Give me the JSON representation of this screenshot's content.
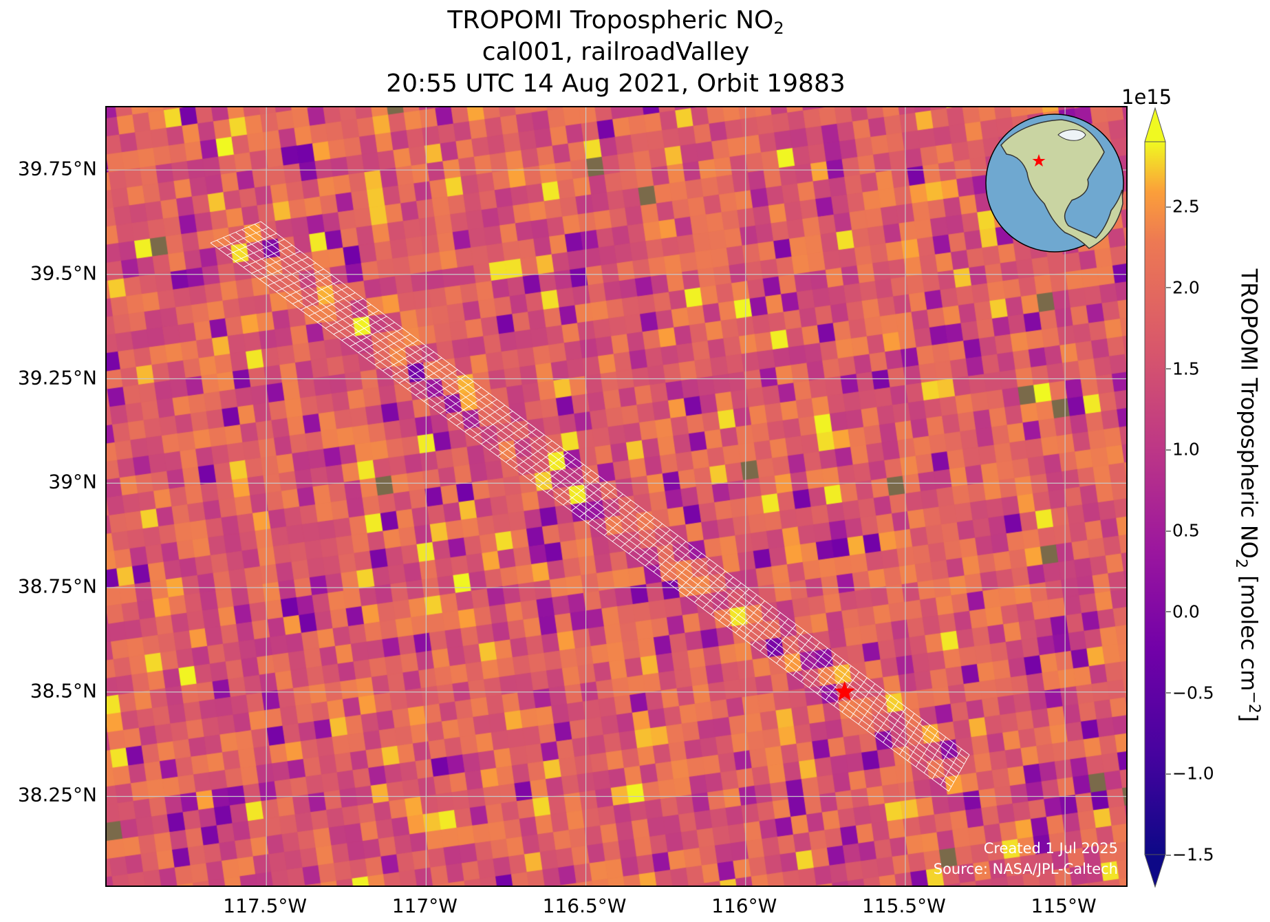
{
  "title": {
    "line1_prefix": "TROPOMI Tropospheric NO",
    "line1_sub": "2",
    "line2": "cal001, railroadValley",
    "line3": "20:55 UTC 14 Aug 2021, Orbit 19883"
  },
  "map": {
    "extent": {
      "lon_min": -118.0,
      "lon_max": -114.8,
      "lat_min": 38.03,
      "lat_max": 39.9
    },
    "x_ticks": [
      {
        "lon": -117.5,
        "label": "117.5°W"
      },
      {
        "lon": -117.0,
        "label": "117°W"
      },
      {
        "lon": -116.5,
        "label": "116.5°W"
      },
      {
        "lon": -116.0,
        "label": "116°W"
      },
      {
        "lon": -115.5,
        "label": "115.5°W"
      },
      {
        "lon": -115.0,
        "label": "115°W"
      }
    ],
    "y_ticks": [
      {
        "lat": 39.75,
        "label": "39.75°N"
      },
      {
        "lat": 39.5,
        "label": "39.5°N"
      },
      {
        "lat": 39.25,
        "label": "39.25°N"
      },
      {
        "lat": 39.0,
        "label": "39°N"
      },
      {
        "lat": 38.75,
        "label": "38.75°N"
      },
      {
        "lat": 38.5,
        "label": "38.5°N"
      },
      {
        "lat": 38.25,
        "label": "38.25°N"
      }
    ],
    "site": {
      "name": "railroadValley",
      "lon": -115.69,
      "lat": 38.5,
      "marker": "red-star",
      "color": "#ff0000"
    },
    "gridlines": true,
    "credit_line1": "Created 1 Jul 2025",
    "credit_line2": "Source: NASA/JPL-Caltech"
  },
  "colorbar": {
    "colormap": "plasma",
    "vmin": -1.5,
    "vmax": 2.9,
    "extend": "both",
    "offset_label": "1e15",
    "ticks": [
      {
        "value": 2.5,
        "label": "2.5"
      },
      {
        "value": 2.0,
        "label": "2.0"
      },
      {
        "value": 1.5,
        "label": "1.5"
      },
      {
        "value": 1.0,
        "label": "1.0"
      },
      {
        "value": 0.5,
        "label": "0.5"
      },
      {
        "value": 0.0,
        "label": "0.0"
      },
      {
        "value": -0.5,
        "label": "−0.5"
      },
      {
        "value": -1.0,
        "label": "−1.0"
      },
      {
        "value": -1.5,
        "label": "−1.5"
      }
    ],
    "label_prefix": "TROPOMI Tropospheric NO",
    "label_sub": "2",
    "label_mid": " [molec cm",
    "label_sup": "−2",
    "label_suffix": "]"
  }
}
